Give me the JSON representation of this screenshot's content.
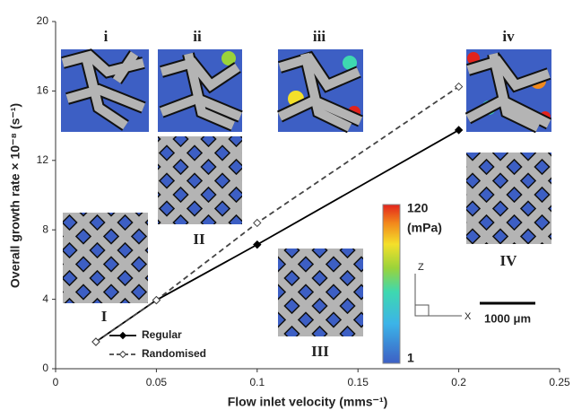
{
  "chart_data": {
    "type": "line",
    "x_label": "Flow inlet velocity (mms⁻¹)",
    "y_label": "Overall growth rate × 10⁻⁸ (s⁻¹)",
    "x": [
      0.02,
      0.05,
      0.1,
      0.2
    ],
    "series": [
      {
        "name": "Regular",
        "color": "#000000",
        "dashed": false,
        "values": [
          1.55,
          3.95,
          7.15,
          13.75
        ]
      },
      {
        "name": "Randomised",
        "color": "#444444",
        "dashed": true,
        "values": [
          1.55,
          3.95,
          8.4,
          16.25
        ]
      }
    ],
    "xlim": [
      0,
      0.25
    ],
    "xticks": [
      0,
      0.05,
      0.1,
      0.15,
      0.2,
      0.25
    ],
    "ylim": [
      0,
      20
    ],
    "yticks": [
      0,
      4,
      8,
      12,
      16,
      20
    ],
    "inset_labels": [
      "i",
      "ii",
      "iii",
      "iv",
      "I",
      "II",
      "III",
      "IV"
    ],
    "colorbar": {
      "max": 120,
      "unit": "(mPa)",
      "min": 1
    },
    "axis_glyph": [
      "Z",
      "X"
    ],
    "scale_bar": "1000 μm"
  }
}
